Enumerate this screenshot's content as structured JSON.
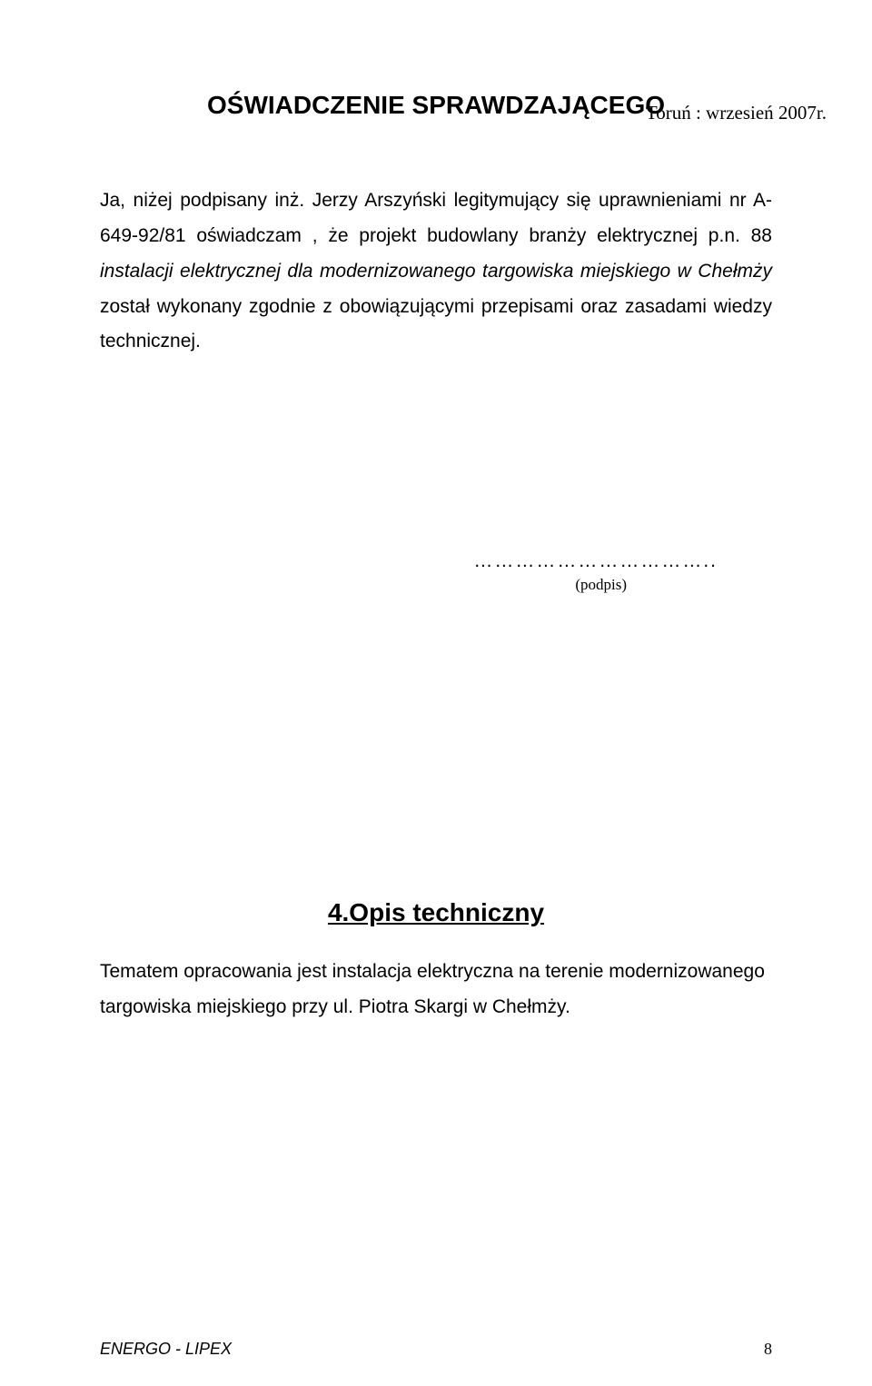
{
  "header": {
    "location_date": "Toruń : wrzesień 2007r."
  },
  "title": "OŚWIADCZENIE SPRAWDZAJĄCEGO",
  "paragraph": {
    "lead": "Ja, niżej podpisany inż. Jerzy Arszyński legitymujący się uprawnieniami nr  A-649-92/81 oświadczam , że   projekt budowlany branży elektrycznej p.n. 88 ",
    "italic": "instalacji elektrycznej dla modernizowanego targowiska miejskiego w Chełmży",
    "tail": " został wykonany zgodnie z obowiązującymi przepisami oraz zasadami wiedzy technicznej."
  },
  "signature": {
    "dots": "……………………………..",
    "label": "(podpis)"
  },
  "section": {
    "heading": "4.Opis techniczny",
    "body": "Tematem opracowania  jest instalacja elektryczna na terenie modernizowanego targowiska miejskiego przy ul. Piotra Skargi w Chełmży."
  },
  "footer": {
    "left": "ENERGO - LIPEX",
    "page": "8"
  }
}
